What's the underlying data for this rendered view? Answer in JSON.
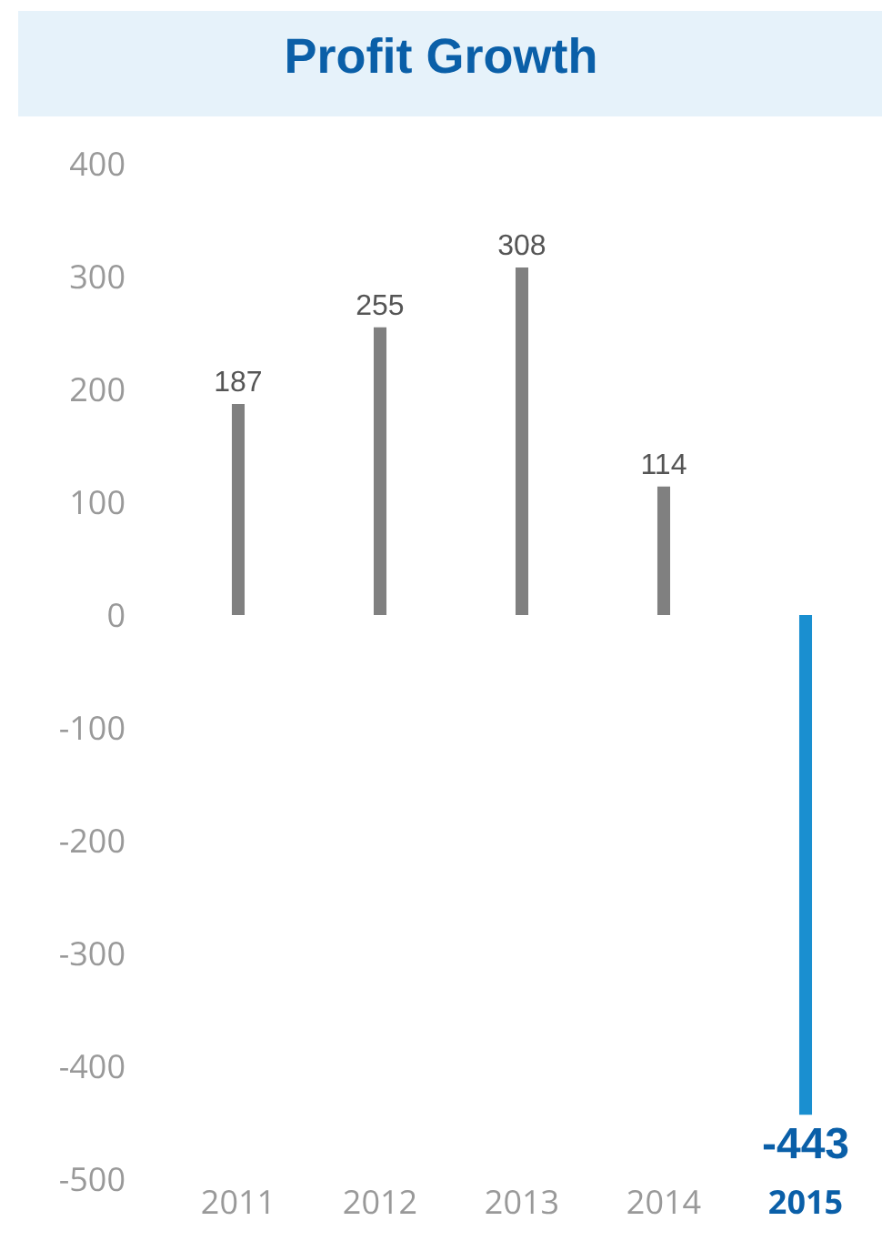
{
  "chart_data": {
    "type": "bar",
    "title": "Profit Growth",
    "categories": [
      "2011",
      "2012",
      "2013",
      "2014",
      "2015"
    ],
    "values": [
      187,
      255,
      308,
      114,
      -443
    ],
    "colors": [
      "#808080",
      "#808080",
      "#808080",
      "#808080",
      "#1a8fd0"
    ],
    "ylim": [
      -500,
      400
    ],
    "yticks": [
      -500,
      -400,
      -300,
      -200,
      -100,
      0,
      100,
      200,
      300,
      400
    ],
    "data_labels": true,
    "grid": false,
    "legend": false
  }
}
